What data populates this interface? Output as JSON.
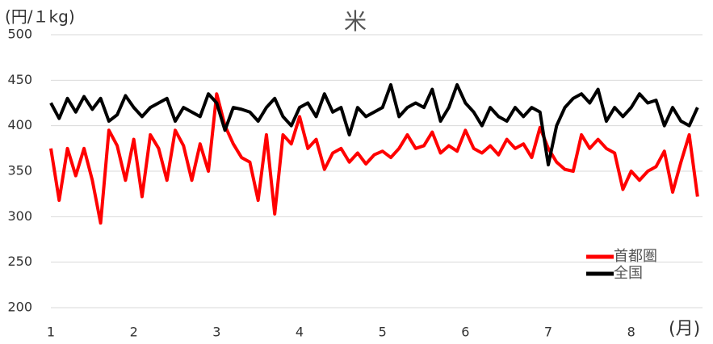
{
  "chart_data": {
    "type": "line",
    "title": "米",
    "y_label": "(円/１kg)",
    "x_label": "(月)",
    "x": [
      1.0,
      1.1,
      1.2,
      1.3,
      1.4,
      1.5,
      1.6,
      1.7,
      1.8,
      1.9,
      2.0,
      2.1,
      2.2,
      2.3,
      2.4,
      2.5,
      2.6,
      2.7,
      2.8,
      2.9,
      3.0,
      3.1,
      3.2,
      3.3,
      3.4,
      3.5,
      3.6,
      3.7,
      3.8,
      3.9,
      4.0,
      4.1,
      4.2,
      4.3,
      4.4,
      4.5,
      4.6,
      4.7,
      4.8,
      4.9,
      5.0,
      5.1,
      5.2,
      5.3,
      5.4,
      5.5,
      5.6,
      5.7,
      5.8,
      5.9,
      6.0,
      6.1,
      6.2,
      6.3,
      6.4,
      6.5,
      6.6,
      6.7,
      6.8,
      6.9,
      7.0,
      7.1,
      7.2,
      7.3,
      7.4,
      7.5,
      7.6,
      7.7,
      7.8,
      7.9,
      8.0,
      8.1,
      8.2,
      8.3,
      8.4,
      8.5,
      8.6,
      8.7,
      8.8
    ],
    "series": [
      {
        "name": "首都圏",
        "color": "#ff0000",
        "values": [
          375,
          318,
          375,
          345,
          375,
          340,
          293,
          395,
          378,
          340,
          385,
          322,
          390,
          375,
          340,
          395,
          378,
          340,
          380,
          350,
          435,
          400,
          380,
          365,
          360,
          318,
          390,
          303,
          390,
          380,
          410,
          375,
          385,
          352,
          370,
          375,
          360,
          370,
          358,
          368,
          372,
          365,
          375,
          390,
          375,
          378,
          393,
          370,
          378,
          372,
          395,
          375,
          370,
          378,
          368,
          385,
          375,
          380,
          365,
          398,
          375,
          360,
          352,
          350,
          390,
          375,
          385,
          375,
          370,
          330,
          350,
          340,
          350,
          355,
          372,
          327,
          360,
          390,
          322
        ]
      },
      {
        "name": "全国",
        "color": "#000000",
        "values": [
          425,
          408,
          430,
          415,
          432,
          418,
          430,
          405,
          412,
          433,
          420,
          410,
          420,
          425,
          430,
          405,
          420,
          415,
          410,
          435,
          425,
          395,
          420,
          418,
          415,
          405,
          420,
          430,
          410,
          400,
          420,
          425,
          410,
          435,
          415,
          420,
          390,
          420,
          410,
          415,
          420,
          445,
          410,
          420,
          425,
          420,
          440,
          405,
          420,
          445,
          425,
          415,
          400,
          420,
          410,
          405,
          420,
          410,
          420,
          415,
          357,
          400,
          420,
          430,
          435,
          425,
          440,
          405,
          420,
          410,
          420,
          435,
          425,
          428,
          400,
          420,
          405,
          400,
          420
        ]
      }
    ],
    "xlim": [
      1,
      8.86
    ],
    "xticks": [
      1,
      2,
      3,
      4,
      5,
      6,
      7,
      8
    ],
    "ylim": [
      200,
      500
    ],
    "yticks": [
      200,
      250,
      300,
      350,
      400,
      450,
      500
    ],
    "grid": true,
    "legend": "bottom-right"
  }
}
